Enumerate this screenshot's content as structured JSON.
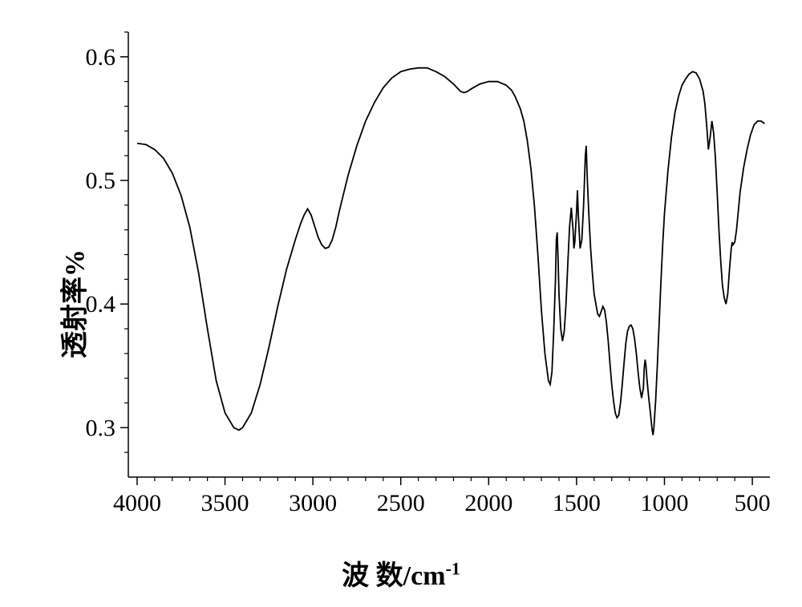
{
  "chart": {
    "type": "line",
    "y_axis_label": "透射率%",
    "x_axis_label_prefix": "波 数/",
    "x_axis_label_unit": "cm",
    "x_axis_label_exp": "-1",
    "background_color": "#ffffff",
    "line_color": "#000000",
    "line_width": 1.8,
    "axis_color": "#000000",
    "axis_width": 1.5,
    "label_fontsize": 34,
    "tick_fontsize": 30,
    "x_axis": {
      "min": 400,
      "max": 4050,
      "reversed": true,
      "major_ticks": [
        4000,
        3500,
        3000,
        2500,
        2000,
        1500,
        1000,
        500
      ],
      "minor_tick_step": 100,
      "tick_labels": [
        "4000",
        "3500",
        "3000",
        "2500",
        "2000",
        "1500",
        "1000",
        "500"
      ]
    },
    "y_axis": {
      "min": 0.26,
      "max": 0.62,
      "major_ticks": [
        0.3,
        0.4,
        0.5,
        0.6
      ],
      "minor_tick_step": 0.02,
      "tick_labels": [
        "0.3",
        "0.4",
        "0.5",
        "0.6"
      ]
    },
    "data_points": [
      [
        4000,
        0.53
      ],
      [
        3950,
        0.529
      ],
      [
        3900,
        0.525
      ],
      [
        3850,
        0.518
      ],
      [
        3800,
        0.506
      ],
      [
        3750,
        0.488
      ],
      [
        3700,
        0.462
      ],
      [
        3650,
        0.425
      ],
      [
        3600,
        0.38
      ],
      [
        3550,
        0.338
      ],
      [
        3500,
        0.312
      ],
      [
        3450,
        0.3
      ],
      [
        3420,
        0.298
      ],
      [
        3400,
        0.3
      ],
      [
        3350,
        0.312
      ],
      [
        3300,
        0.335
      ],
      [
        3250,
        0.365
      ],
      [
        3200,
        0.398
      ],
      [
        3150,
        0.428
      ],
      [
        3100,
        0.452
      ],
      [
        3070,
        0.465
      ],
      [
        3050,
        0.472
      ],
      [
        3030,
        0.477
      ],
      [
        3010,
        0.472
      ],
      [
        2990,
        0.463
      ],
      [
        2970,
        0.454
      ],
      [
        2950,
        0.448
      ],
      [
        2930,
        0.445
      ],
      [
        2910,
        0.446
      ],
      [
        2890,
        0.452
      ],
      [
        2870,
        0.462
      ],
      [
        2850,
        0.475
      ],
      [
        2800,
        0.504
      ],
      [
        2750,
        0.528
      ],
      [
        2700,
        0.548
      ],
      [
        2650,
        0.563
      ],
      [
        2600,
        0.575
      ],
      [
        2550,
        0.583
      ],
      [
        2500,
        0.588
      ],
      [
        2450,
        0.59
      ],
      [
        2400,
        0.591
      ],
      [
        2350,
        0.591
      ],
      [
        2300,
        0.588
      ],
      [
        2250,
        0.584
      ],
      [
        2200,
        0.578
      ],
      [
        2180,
        0.575
      ],
      [
        2160,
        0.572
      ],
      [
        2140,
        0.571
      ],
      [
        2120,
        0.572
      ],
      [
        2100,
        0.574
      ],
      [
        2050,
        0.578
      ],
      [
        2000,
        0.58
      ],
      [
        1950,
        0.58
      ],
      [
        1900,
        0.577
      ],
      [
        1870,
        0.573
      ],
      [
        1850,
        0.568
      ],
      [
        1820,
        0.558
      ],
      [
        1800,
        0.548
      ],
      [
        1780,
        0.532
      ],
      [
        1760,
        0.51
      ],
      [
        1740,
        0.48
      ],
      [
        1720,
        0.44
      ],
      [
        1700,
        0.395
      ],
      [
        1680,
        0.36
      ],
      [
        1660,
        0.338
      ],
      [
        1650,
        0.335
      ],
      [
        1640,
        0.345
      ],
      [
        1630,
        0.378
      ],
      [
        1620,
        0.42
      ],
      [
        1615,
        0.452
      ],
      [
        1610,
        0.458
      ],
      [
        1605,
        0.435
      ],
      [
        1600,
        0.408
      ],
      [
        1590,
        0.38
      ],
      [
        1580,
        0.37
      ],
      [
        1570,
        0.378
      ],
      [
        1560,
        0.4
      ],
      [
        1550,
        0.432
      ],
      [
        1540,
        0.462
      ],
      [
        1530,
        0.478
      ],
      [
        1520,
        0.46
      ],
      [
        1515,
        0.445
      ],
      [
        1510,
        0.45
      ],
      [
        1500,
        0.475
      ],
      [
        1495,
        0.492
      ],
      [
        1490,
        0.472
      ],
      [
        1480,
        0.445
      ],
      [
        1470,
        0.452
      ],
      [
        1460,
        0.48
      ],
      [
        1450,
        0.52
      ],
      [
        1445,
        0.528
      ],
      [
        1440,
        0.505
      ],
      [
        1430,
        0.472
      ],
      [
        1420,
        0.445
      ],
      [
        1410,
        0.425
      ],
      [
        1400,
        0.408
      ],
      [
        1380,
        0.392
      ],
      [
        1370,
        0.39
      ],
      [
        1360,
        0.394
      ],
      [
        1350,
        0.398
      ],
      [
        1340,
        0.395
      ],
      [
        1330,
        0.385
      ],
      [
        1320,
        0.37
      ],
      [
        1310,
        0.352
      ],
      [
        1300,
        0.335
      ],
      [
        1290,
        0.322
      ],
      [
        1280,
        0.312
      ],
      [
        1270,
        0.308
      ],
      [
        1260,
        0.31
      ],
      [
        1250,
        0.32
      ],
      [
        1240,
        0.335
      ],
      [
        1230,
        0.352
      ],
      [
        1220,
        0.368
      ],
      [
        1210,
        0.378
      ],
      [
        1200,
        0.382
      ],
      [
        1190,
        0.383
      ],
      [
        1180,
        0.38
      ],
      [
        1170,
        0.372
      ],
      [
        1160,
        0.36
      ],
      [
        1150,
        0.345
      ],
      [
        1140,
        0.332
      ],
      [
        1130,
        0.324
      ],
      [
        1120,
        0.332
      ],
      [
        1115,
        0.348
      ],
      [
        1110,
        0.355
      ],
      [
        1105,
        0.35
      ],
      [
        1100,
        0.34
      ],
      [
        1090,
        0.325
      ],
      [
        1080,
        0.312
      ],
      [
        1070,
        0.298
      ],
      [
        1065,
        0.294
      ],
      [
        1060,
        0.3
      ],
      [
        1050,
        0.322
      ],
      [
        1040,
        0.352
      ],
      [
        1030,
        0.385
      ],
      [
        1020,
        0.418
      ],
      [
        1010,
        0.448
      ],
      [
        1000,
        0.473
      ],
      [
        980,
        0.508
      ],
      [
        960,
        0.535
      ],
      [
        940,
        0.555
      ],
      [
        920,
        0.568
      ],
      [
        900,
        0.577
      ],
      [
        880,
        0.582
      ],
      [
        860,
        0.586
      ],
      [
        840,
        0.588
      ],
      [
        820,
        0.587
      ],
      [
        800,
        0.582
      ],
      [
        780,
        0.572
      ],
      [
        770,
        0.562
      ],
      [
        760,
        0.545
      ],
      [
        750,
        0.525
      ],
      [
        740,
        0.535
      ],
      [
        730,
        0.548
      ],
      [
        720,
        0.538
      ],
      [
        710,
        0.518
      ],
      [
        700,
        0.49
      ],
      [
        690,
        0.46
      ],
      [
        680,
        0.435
      ],
      [
        670,
        0.415
      ],
      [
        660,
        0.405
      ],
      [
        650,
        0.4
      ],
      [
        640,
        0.408
      ],
      [
        630,
        0.428
      ],
      [
        620,
        0.445
      ],
      [
        615,
        0.45
      ],
      [
        610,
        0.448
      ],
      [
        600,
        0.45
      ],
      [
        590,
        0.46
      ],
      [
        580,
        0.475
      ],
      [
        570,
        0.49
      ],
      [
        550,
        0.51
      ],
      [
        530,
        0.525
      ],
      [
        510,
        0.537
      ],
      [
        490,
        0.545
      ],
      [
        470,
        0.548
      ],
      [
        450,
        0.548
      ],
      [
        430,
        0.546
      ]
    ]
  }
}
